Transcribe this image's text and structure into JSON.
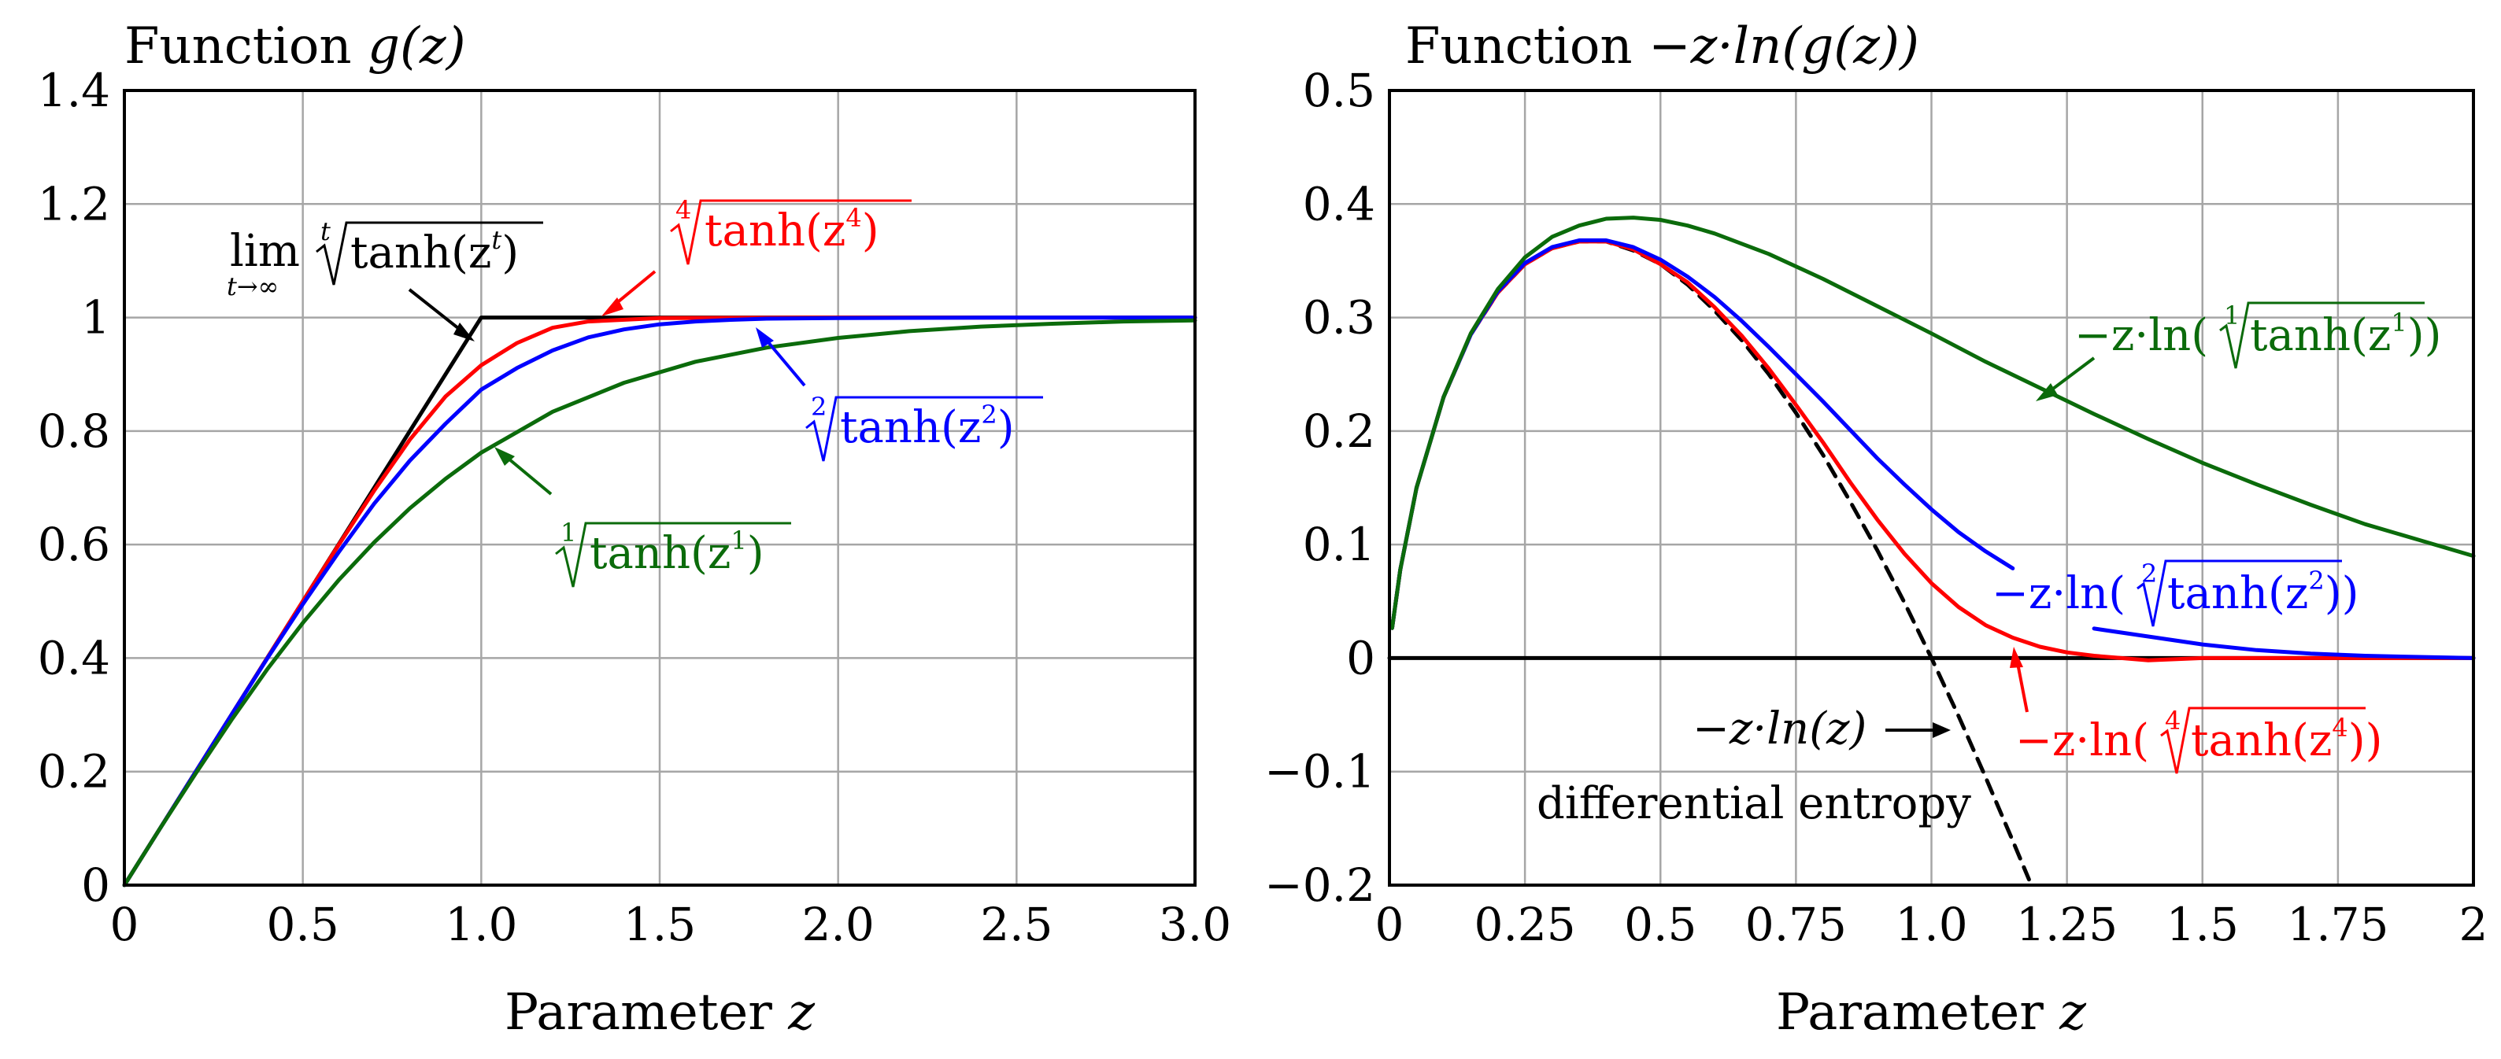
{
  "chart_data": [
    {
      "type": "line",
      "title": "Function g(z)",
      "title_prefix": "Function ",
      "title_math": "g(z)",
      "xlabel_text": "Parameter ",
      "xlabel_var": "z",
      "xlim": [
        0,
        3
      ],
      "ylim": [
        0,
        1.4
      ],
      "x_ticks": [
        0,
        0.5,
        1,
        1.5,
        2,
        2.5,
        3
      ],
      "x_tick_labels": [
        "0",
        "0.5",
        "1.0",
        "1.5",
        "2.0",
        "2.5",
        "3.0"
      ],
      "y_ticks": [
        0,
        0.2,
        0.4,
        0.6,
        0.8,
        1,
        1.2,
        1.4
      ],
      "y_tick_labels": [
        "0",
        "0.2",
        "0.4",
        "0.6",
        "0.8",
        "1",
        "1.2",
        "1.4"
      ],
      "grid": true,
      "series": [
        {
          "name": "lim t→∞ t-th root of tanh(z^t)",
          "color": "#000000",
          "x": [
            0,
            1,
            3
          ],
          "y": [
            0,
            1,
            1
          ]
        },
        {
          "name": "4th root of tanh(z^4)",
          "color": "#ff0000",
          "x": [
            0,
            0.1,
            0.2,
            0.3,
            0.4,
            0.5,
            0.6,
            0.7,
            0.8,
            0.9,
            1.0,
            1.1,
            1.2,
            1.3,
            1.5,
            2.0,
            3.0
          ],
          "y": [
            0,
            0.1,
            0.2,
            0.3,
            0.4,
            0.5,
            0.599,
            0.695,
            0.785,
            0.861,
            0.916,
            0.955,
            0.982,
            0.993,
            0.999,
            1.0,
            1.0
          ]
        },
        {
          "name": "2nd root of tanh(z^2)",
          "color": "#0000ff",
          "x": [
            0,
            0.1,
            0.2,
            0.3,
            0.4,
            0.5,
            0.6,
            0.7,
            0.8,
            0.9,
            1.0,
            1.1,
            1.2,
            1.3,
            1.4,
            1.5,
            1.6,
            1.7,
            1.8,
            2.0,
            2.5,
            3.0
          ],
          "y": [
            0,
            0.1,
            0.2,
            0.3,
            0.399,
            0.495,
            0.586,
            0.672,
            0.748,
            0.813,
            0.873,
            0.911,
            0.942,
            0.965,
            0.979,
            0.988,
            0.993,
            0.996,
            0.998,
            0.999,
            1.0,
            1.0
          ]
        },
        {
          "name": "1st root of tanh(z^1)",
          "color": "#0b6b0b",
          "x": [
            0,
            0.1,
            0.2,
            0.3,
            0.4,
            0.5,
            0.6,
            0.7,
            0.8,
            0.9,
            1.0,
            1.2,
            1.4,
            1.6,
            1.8,
            2.0,
            2.2,
            2.4,
            2.6,
            2.8,
            3.0
          ],
          "y": [
            0,
            0.1,
            0.197,
            0.291,
            0.38,
            0.462,
            0.537,
            0.604,
            0.664,
            0.716,
            0.762,
            0.834,
            0.885,
            0.922,
            0.947,
            0.964,
            0.976,
            0.984,
            0.989,
            0.993,
            0.995
          ]
        }
      ],
      "annotations": {
        "lim_label": "lim",
        "lim_sub": "t→∞",
        "lim_index": "t",
        "lim_body": "tanh(z",
        "lim_exp": "t",
        "lim_close": ")",
        "red_index": "4",
        "red_body": "tanh(z",
        "red_exp": "4",
        "red_close": ")",
        "blue_index": "2",
        "blue_body": "tanh(z",
        "blue_exp": "2",
        "blue_close": ")",
        "green_index": "1",
        "green_body": "tanh(z",
        "green_exp": "1",
        "green_close": ")"
      }
    },
    {
      "type": "line",
      "title": "Function −z·ln(g(z))",
      "title_prefix": "Function ",
      "title_math": "−z·ln(g(z))",
      "xlabel_text": "Parameter ",
      "xlabel_var": "z",
      "xlim": [
        0,
        2
      ],
      "ylim": [
        -0.2,
        0.5
      ],
      "x_ticks": [
        0,
        0.25,
        0.5,
        0.75,
        1,
        1.25,
        1.5,
        1.75,
        2
      ],
      "x_tick_labels": [
        "0",
        "0.25",
        "0.5",
        "0.75",
        "1.0",
        "1.25",
        "1.5",
        "1.75",
        "2"
      ],
      "y_ticks": [
        -0.2,
        -0.1,
        0,
        0.1,
        0.2,
        0.3,
        0.4,
        0.5
      ],
      "y_tick_labels": [
        "−0.2",
        "−0.1",
        "0",
        "0.1",
        "0.2",
        "0.3",
        "0.4",
        "0.5"
      ],
      "grid": true,
      "series": [
        {
          "name": "zero line",
          "color": "#000000",
          "x": [
            0,
            2
          ],
          "y": [
            0,
            0
          ]
        },
        {
          "name": "−z·ln(z) differential entropy",
          "color": "#000000",
          "dashed": true,
          "x": [
            0.005,
            0.02,
            0.05,
            0.1,
            0.15,
            0.2,
            0.25,
            0.3,
            0.35,
            0.4,
            0.45,
            0.5,
            0.55,
            0.6,
            0.65,
            0.7,
            0.75,
            0.8,
            0.85,
            0.9,
            0.95,
            1.0,
            1.05,
            1.1,
            1.15,
            1.18
          ],
          "y": [
            0.0265,
            0.078,
            0.15,
            0.23,
            0.285,
            0.322,
            0.347,
            0.361,
            0.367,
            0.367,
            0.359,
            0.347,
            0.329,
            0.306,
            0.28,
            0.25,
            0.216,
            0.179,
            0.138,
            0.095,
            0.049,
            0.0,
            -0.051,
            -0.105,
            -0.161,
            -0.195
          ]
        },
        {
          "name": "−z·ln(4th root of tanh(z^4))",
          "color": "#ff0000",
          "x": [
            0.005,
            0.02,
            0.05,
            0.1,
            0.15,
            0.2,
            0.25,
            0.3,
            0.35,
            0.4,
            0.45,
            0.5,
            0.55,
            0.6,
            0.65,
            0.7,
            0.75,
            0.8,
            0.85,
            0.9,
            0.95,
            1.0,
            1.05,
            1.1,
            1.15,
            1.2,
            1.25,
            1.3,
            1.35,
            1.4,
            1.5,
            1.6,
            1.8,
            2.0
          ],
          "y": [
            0.0265,
            0.078,
            0.15,
            0.23,
            0.285,
            0.322,
            0.347,
            0.361,
            0.367,
            0.367,
            0.36,
            0.347,
            0.331,
            0.309,
            0.284,
            0.255,
            0.223,
            0.19,
            0.155,
            0.122,
            0.092,
            0.066,
            0.045,
            0.029,
            0.018,
            0.01,
            0.005,
            0.002,
            0.0,
            -0.002,
            0.0,
            0.0,
            0.0,
            0.0
          ]
        },
        {
          "name": "−z·ln(2nd root of tanh(z^2))",
          "color": "#0000ff",
          "x": [
            0.005,
            0.02,
            0.05,
            0.1,
            0.15,
            0.2,
            0.25,
            0.3,
            0.35,
            0.4,
            0.45,
            0.5,
            0.55,
            0.6,
            0.65,
            0.7,
            0.75,
            0.8,
            0.85,
            0.9,
            0.95,
            1.0,
            1.05,
            1.1,
            1.15
          ],
          "y": [
            0.0265,
            0.078,
            0.15,
            0.23,
            0.285,
            0.323,
            0.348,
            0.362,
            0.368,
            0.368,
            0.362,
            0.351,
            0.336,
            0.318,
            0.297,
            0.274,
            0.25,
            0.226,
            0.201,
            0.176,
            0.153,
            0.131,
            0.111,
            0.094,
            0.079
          ]
        },
        {
          "name": "−z·ln(2nd root of tanh(z^2)) tail",
          "color": "#0000ff",
          "x": [
            1.3,
            1.4,
            1.5,
            1.6,
            1.7,
            1.8,
            1.9,
            2.0
          ],
          "y": [
            0.026,
            0.019,
            0.012,
            0.007,
            0.004,
            0.002,
            0.001,
            0.0
          ]
        },
        {
          "name": "−z·ln(1st root of tanh(z^1))",
          "color": "#0b6b0b",
          "x": [
            0.005,
            0.02,
            0.05,
            0.1,
            0.15,
            0.2,
            0.25,
            0.3,
            0.35,
            0.4,
            0.45,
            0.5,
            0.55,
            0.6,
            0.7,
            0.8,
            0.9,
            1.0,
            1.1,
            1.2,
            1.3,
            1.4,
            1.5,
            1.6,
            1.7,
            1.8,
            1.9,
            2.0
          ],
          "y": [
            0.0265,
            0.078,
            0.15,
            0.23,
            0.286,
            0.325,
            0.353,
            0.371,
            0.381,
            0.387,
            0.388,
            0.386,
            0.381,
            0.374,
            0.356,
            0.334,
            0.31,
            0.286,
            0.261,
            0.238,
            0.215,
            0.193,
            0.172,
            0.153,
            0.135,
            0.118,
            0.104,
            0.09
          ]
        }
      ],
      "annotations": {
        "green_pre": "−z·ln(",
        "green_index": "1",
        "green_body": "tanh(z",
        "green_exp": "1",
        "green_close": "))",
        "blue_pre": "−z·ln(",
        "blue_index": "2",
        "blue_body": "tanh(z",
        "blue_exp": "2",
        "blue_close": "))",
        "red_pre": "−z·ln(",
        "red_index": "4",
        "red_body": "tanh(z",
        "red_exp": "4",
        "red_close": "))",
        "entropy_formula": "−z·ln(z)",
        "entropy_label": "differential entropy"
      }
    }
  ]
}
